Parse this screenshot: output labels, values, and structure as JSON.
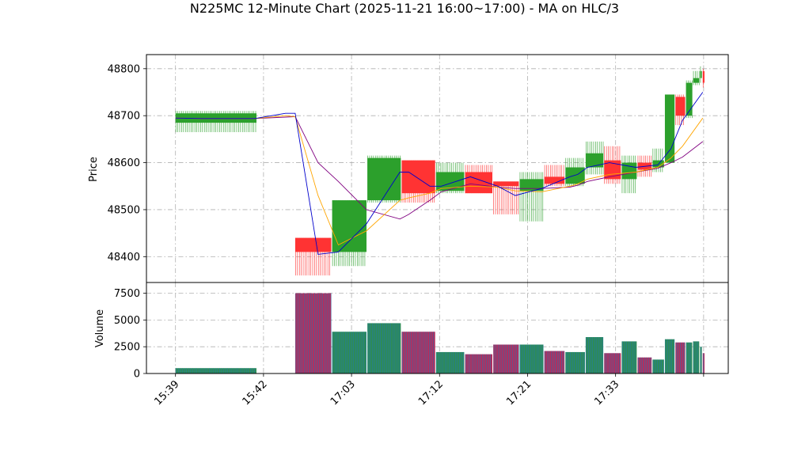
{
  "chart_data": {
    "type": "candlestick",
    "title": "N225MC 12-Minute Chart (2025-11-21 16:00~17:00) - MA on HLC/3",
    "price_panel": {
      "ylabel": "Price",
      "ylim": [
        48345,
        48830
      ],
      "yticks": [
        48400,
        48500,
        48600,
        48700,
        48800
      ],
      "grid": true
    },
    "volume_panel": {
      "ylabel": "Volume",
      "ylim": [
        0,
        8500
      ],
      "yticks": [
        0,
        2500,
        5000,
        7500
      ],
      "grid": true
    },
    "x_axis": {
      "range": [
        -3.3,
        62.8
      ],
      "ticks": [
        {
          "x": 0,
          "label": "15:39"
        },
        {
          "x": 10,
          "label": "15:42"
        },
        {
          "x": 20,
          "label": "17:03"
        },
        {
          "x": 30,
          "label": "17:12"
        },
        {
          "x": 40,
          "label": "17:21"
        },
        {
          "x": 50,
          "label": "17:33"
        },
        {
          "x": 60,
          "label": ""
        }
      ]
    },
    "colors": {
      "up": "#2ca02c",
      "down": "#ff3333",
      "vol_up_edge": "#1f77b4",
      "vol_up_fill": "#2e8b57",
      "vol_down_edge": "#1f77b4",
      "vol_down_fill": "#b03060",
      "ma_short": "#0000cc",
      "ma_mid": "#ffa500",
      "ma_long": "#800080"
    },
    "bars": [
      {
        "x0": 0,
        "x1": 9.2,
        "open": 48685,
        "high": 48710,
        "low": 48665,
        "close": 48705,
        "volume": 500
      },
      {
        "x0": 13.6,
        "x1": 17.7,
        "open": 48440,
        "high": 48440,
        "low": 48360,
        "close": 48410,
        "volume": 7500
      },
      {
        "x0": 17.8,
        "x1": 21.7,
        "open": 48410,
        "high": 48520,
        "low": 48380,
        "close": 48520,
        "volume": 3900
      },
      {
        "x0": 21.8,
        "x1": 25.6,
        "open": 48520,
        "high": 48615,
        "low": 48515,
        "close": 48610,
        "volume": 4700
      },
      {
        "x0": 25.7,
        "x1": 29.5,
        "open": 48605,
        "high": 48605,
        "low": 48515,
        "close": 48535,
        "volume": 3900
      },
      {
        "x0": 29.6,
        "x1": 32.8,
        "open": 48540,
        "high": 48600,
        "low": 48535,
        "close": 48580,
        "volume": 2000
      },
      {
        "x0": 32.9,
        "x1": 36.0,
        "open": 48580,
        "high": 48595,
        "low": 48535,
        "close": 48535,
        "volume": 1800
      },
      {
        "x0": 36.1,
        "x1": 39.0,
        "open": 48560,
        "high": 48560,
        "low": 48490,
        "close": 48550,
        "volume": 2700
      },
      {
        "x0": 39.1,
        "x1": 41.8,
        "open": 48540,
        "high": 48580,
        "low": 48475,
        "close": 48565,
        "volume": 2700
      },
      {
        "x0": 41.9,
        "x1": 44.2,
        "open": 48570,
        "high": 48595,
        "low": 48550,
        "close": 48555,
        "volume": 2100
      },
      {
        "x0": 44.3,
        "x1": 46.5,
        "open": 48555,
        "high": 48610,
        "low": 48550,
        "close": 48590,
        "volume": 2000
      },
      {
        "x0": 46.6,
        "x1": 48.6,
        "open": 48590,
        "high": 48645,
        "low": 48575,
        "close": 48620,
        "volume": 3400
      },
      {
        "x0": 48.7,
        "x1": 50.6,
        "open": 48605,
        "high": 48635,
        "low": 48555,
        "close": 48565,
        "volume": 1900
      },
      {
        "x0": 50.7,
        "x1": 52.4,
        "open": 48565,
        "high": 48615,
        "low": 48535,
        "close": 48600,
        "volume": 3000
      },
      {
        "x0": 52.5,
        "x1": 54.1,
        "open": 48600,
        "high": 48615,
        "low": 48570,
        "close": 48585,
        "volume": 1500
      },
      {
        "x0": 54.2,
        "x1": 55.5,
        "open": 48590,
        "high": 48630,
        "low": 48580,
        "close": 48605,
        "volume": 1300
      },
      {
        "x0": 55.6,
        "x1": 56.7,
        "open": 48600,
        "high": 48745,
        "low": 48600,
        "close": 48745,
        "volume": 3200
      },
      {
        "x0": 56.8,
        "x1": 57.9,
        "open": 48740,
        "high": 48745,
        "low": 48680,
        "close": 48700,
        "volume": 2900
      },
      {
        "x0": 58.0,
        "x1": 58.7,
        "open": 48700,
        "high": 48775,
        "low": 48695,
        "close": 48770,
        "volume": 2900
      },
      {
        "x0": 58.8,
        "x1": 59.5,
        "open": 48770,
        "high": 48795,
        "low": 48765,
        "close": 48780,
        "volume": 3000
      },
      {
        "x0": 59.6,
        "x1": 59.8,
        "open": 48780,
        "high": 48805,
        "low": 48770,
        "close": 48795,
        "volume": 2500
      },
      {
        "x0": 59.9,
        "x1": 60.1,
        "open": 48795,
        "high": 48800,
        "low": 48760,
        "close": 48770,
        "volume": 1900
      }
    ],
    "ma_short": {
      "x": [
        0,
        3,
        9,
        12.5,
        13.6,
        16.2,
        18.5,
        21.7,
        25.5,
        26.5,
        28.9,
        30.2,
        33.5,
        36.6,
        38.6,
        41.6,
        44.8,
        45.7,
        46.8,
        49.3,
        52.3,
        54.8,
        56.3,
        57.6,
        59.9
      ],
      "y": [
        48695,
        48694,
        48694,
        48705,
        48705,
        48405,
        48410,
        48470,
        48580,
        48580,
        48550,
        48550,
        48570,
        48550,
        48530,
        48545,
        48570,
        48575,
        48590,
        48600,
        48590,
        48595,
        48630,
        48690,
        48750
      ]
    },
    "ma_mid": {
      "x": [
        0,
        3,
        9,
        12.5,
        13.6,
        16.2,
        18.5,
        21.7,
        25.5,
        26.5,
        28.9,
        30.2,
        33.5,
        36.6,
        38.6,
        41.6,
        44.8,
        45.7,
        46.8,
        49.3,
        52.3,
        54.8,
        56.3,
        57.6,
        59.9
      ],
      "y": [
        48695,
        48694,
        48694,
        48700,
        48698,
        48530,
        48425,
        48455,
        48520,
        48525,
        48535,
        48545,
        48550,
        48548,
        48540,
        48538,
        48550,
        48555,
        48565,
        48575,
        48580,
        48590,
        48610,
        48635,
        48695
      ]
    },
    "ma_long": {
      "x": [
        0,
        3,
        9,
        12.5,
        13.6,
        16.2,
        18.5,
        21.7,
        25.5,
        26.5,
        28.9,
        30.2,
        33.5,
        36.6,
        38.6,
        41.6,
        44.8,
        45.7,
        46.8,
        49.3,
        52.3,
        54.8,
        56.3,
        57.6,
        59.9
      ],
      "y": [
        48695,
        48694,
        48694,
        48697,
        48698,
        48600,
        48560,
        48500,
        48480,
        48490,
        48520,
        48538,
        48555,
        48548,
        48545,
        48545,
        48548,
        48552,
        48560,
        48570,
        48580,
        48588,
        48600,
        48612,
        48645
      ]
    }
  }
}
